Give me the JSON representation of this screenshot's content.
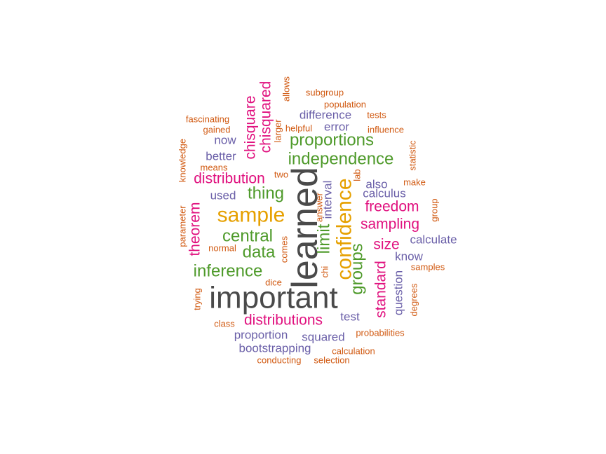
{
  "palette": {
    "dark": "#4a4a4a",
    "orange": "#e6a000",
    "green": "#4e9a2a",
    "magenta": "#e0107e",
    "purple": "#6a5fa8",
    "rust": "#d15a12"
  },
  "words": [
    {
      "text": "important",
      "weight": 9,
      "color": "dark"
    },
    {
      "text": "learned",
      "weight": 9,
      "color": "dark"
    },
    {
      "text": "confidence",
      "weight": 6,
      "color": "orange"
    },
    {
      "text": "sample",
      "weight": 6,
      "color": "orange"
    },
    {
      "text": "independence",
      "weight": 5,
      "color": "green"
    },
    {
      "text": "proportions",
      "weight": 5,
      "color": "green"
    },
    {
      "text": "central",
      "weight": 5,
      "color": "green"
    },
    {
      "text": "inference",
      "weight": 5,
      "color": "green"
    },
    {
      "text": "data",
      "weight": 5,
      "color": "green"
    },
    {
      "text": "thing",
      "weight": 5,
      "color": "green"
    },
    {
      "text": "limit",
      "weight": 5,
      "color": "green"
    },
    {
      "text": "groups",
      "weight": 5,
      "color": "green"
    },
    {
      "text": "chisquare",
      "weight": 4,
      "color": "magenta"
    },
    {
      "text": "chisquared",
      "weight": 4,
      "color": "magenta"
    },
    {
      "text": "distribution",
      "weight": 4,
      "color": "magenta"
    },
    {
      "text": "distributions",
      "weight": 4,
      "color": "magenta"
    },
    {
      "text": "theorem",
      "weight": 4,
      "color": "magenta"
    },
    {
      "text": "freedom",
      "weight": 4,
      "color": "magenta"
    },
    {
      "text": "sampling",
      "weight": 4,
      "color": "magenta"
    },
    {
      "text": "size",
      "weight": 4,
      "color": "magenta"
    },
    {
      "text": "standard",
      "weight": 4,
      "color": "magenta"
    },
    {
      "text": "difference",
      "weight": 3,
      "color": "purple"
    },
    {
      "text": "error",
      "weight": 3,
      "color": "purple"
    },
    {
      "text": "now",
      "weight": 3,
      "color": "purple"
    },
    {
      "text": "better",
      "weight": 3,
      "color": "purple"
    },
    {
      "text": "used",
      "weight": 3,
      "color": "purple"
    },
    {
      "text": "also",
      "weight": 3,
      "color": "purple"
    },
    {
      "text": "calculus",
      "weight": 3,
      "color": "purple"
    },
    {
      "text": "interval",
      "weight": 3,
      "color": "purple"
    },
    {
      "text": "calculate",
      "weight": 3,
      "color": "purple"
    },
    {
      "text": "know",
      "weight": 3,
      "color": "purple"
    },
    {
      "text": "question",
      "weight": 3,
      "color": "purple"
    },
    {
      "text": "test",
      "weight": 3,
      "color": "purple"
    },
    {
      "text": "proportion",
      "weight": 3,
      "color": "purple"
    },
    {
      "text": "squared",
      "weight": 3,
      "color": "purple"
    },
    {
      "text": "bootstrapping",
      "weight": 3,
      "color": "purple"
    },
    {
      "text": "allows",
      "weight": 2,
      "color": "rust"
    },
    {
      "text": "subgroup",
      "weight": 2,
      "color": "rust"
    },
    {
      "text": "population",
      "weight": 2,
      "color": "rust"
    },
    {
      "text": "tests",
      "weight": 2,
      "color": "rust"
    },
    {
      "text": "fascinating",
      "weight": 2,
      "color": "rust"
    },
    {
      "text": "gained",
      "weight": 2,
      "color": "rust"
    },
    {
      "text": "larger",
      "weight": 2,
      "color": "rust"
    },
    {
      "text": "helpful",
      "weight": 2,
      "color": "rust"
    },
    {
      "text": "influence",
      "weight": 2,
      "color": "rust"
    },
    {
      "text": "knowledge",
      "weight": 2,
      "color": "rust"
    },
    {
      "text": "means",
      "weight": 2,
      "color": "rust"
    },
    {
      "text": "statistic",
      "weight": 2,
      "color": "rust"
    },
    {
      "text": "two",
      "weight": 2,
      "color": "rust"
    },
    {
      "text": "lab",
      "weight": 2,
      "color": "rust"
    },
    {
      "text": "make",
      "weight": 2,
      "color": "rust"
    },
    {
      "text": "answer",
      "weight": 2,
      "color": "rust"
    },
    {
      "text": "group",
      "weight": 2,
      "color": "rust"
    },
    {
      "text": "parameter",
      "weight": 2,
      "color": "rust"
    },
    {
      "text": "normal",
      "weight": 2,
      "color": "rust"
    },
    {
      "text": "comes",
      "weight": 2,
      "color": "rust"
    },
    {
      "text": "chi",
      "weight": 2,
      "color": "rust"
    },
    {
      "text": "samples",
      "weight": 2,
      "color": "rust"
    },
    {
      "text": "dice",
      "weight": 2,
      "color": "rust"
    },
    {
      "text": "trying",
      "weight": 2,
      "color": "rust"
    },
    {
      "text": "degrees",
      "weight": 2,
      "color": "rust"
    },
    {
      "text": "class",
      "weight": 2,
      "color": "rust"
    },
    {
      "text": "probabilities",
      "weight": 2,
      "color": "rust"
    },
    {
      "text": "calculation",
      "weight": 2,
      "color": "rust"
    },
    {
      "text": "conducting",
      "weight": 2,
      "color": "rust"
    },
    {
      "text": "selection",
      "weight": 2,
      "color": "rust"
    }
  ]
}
